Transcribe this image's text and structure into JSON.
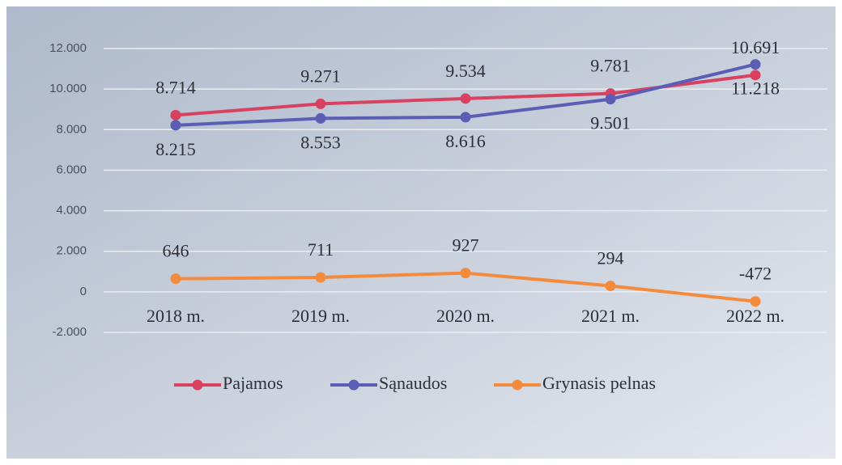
{
  "chart_data": {
    "type": "line",
    "categories": [
      "2018 m.",
      "2019 m.",
      "2020 m.",
      "2021 m.",
      "2022 m."
    ],
    "series": [
      {
        "name": "Pajamos",
        "color": "#d8415f",
        "values": [
          8714,
          9271,
          9534,
          9781,
          10691
        ],
        "value_labels": [
          "8.714",
          "9.271",
          "9.534",
          "9.781",
          "10.691"
        ]
      },
      {
        "name": "Sąnaudos",
        "color": "#5a5eb4",
        "values": [
          8215,
          8553,
          8616,
          9501,
          11218
        ],
        "value_labels": [
          "8.215",
          "8.553",
          "8.616",
          "9.501",
          "11.218"
        ]
      },
      {
        "name": "Grynasis pelnas",
        "color": "#f48a3c",
        "values": [
          646,
          711,
          927,
          294,
          -472
        ]
      }
    ],
    "ylim": [
      -2000,
      12000
    ],
    "yticks": [
      {
        "value": -2000,
        "label": "-2.000"
      },
      0,
      {
        "value": 2000,
        "label": "2.000"
      },
      {
        "value": 4000,
        "label": "4.000"
      },
      {
        "value": 6000,
        "label": "6.000"
      },
      {
        "value": 8000,
        "label": "8.000"
      },
      {
        "value": 10000,
        "label": "10.000"
      },
      {
        "value": 12000,
        "label": "12.000"
      }
    ],
    "grid": true,
    "legend": "bottom"
  }
}
